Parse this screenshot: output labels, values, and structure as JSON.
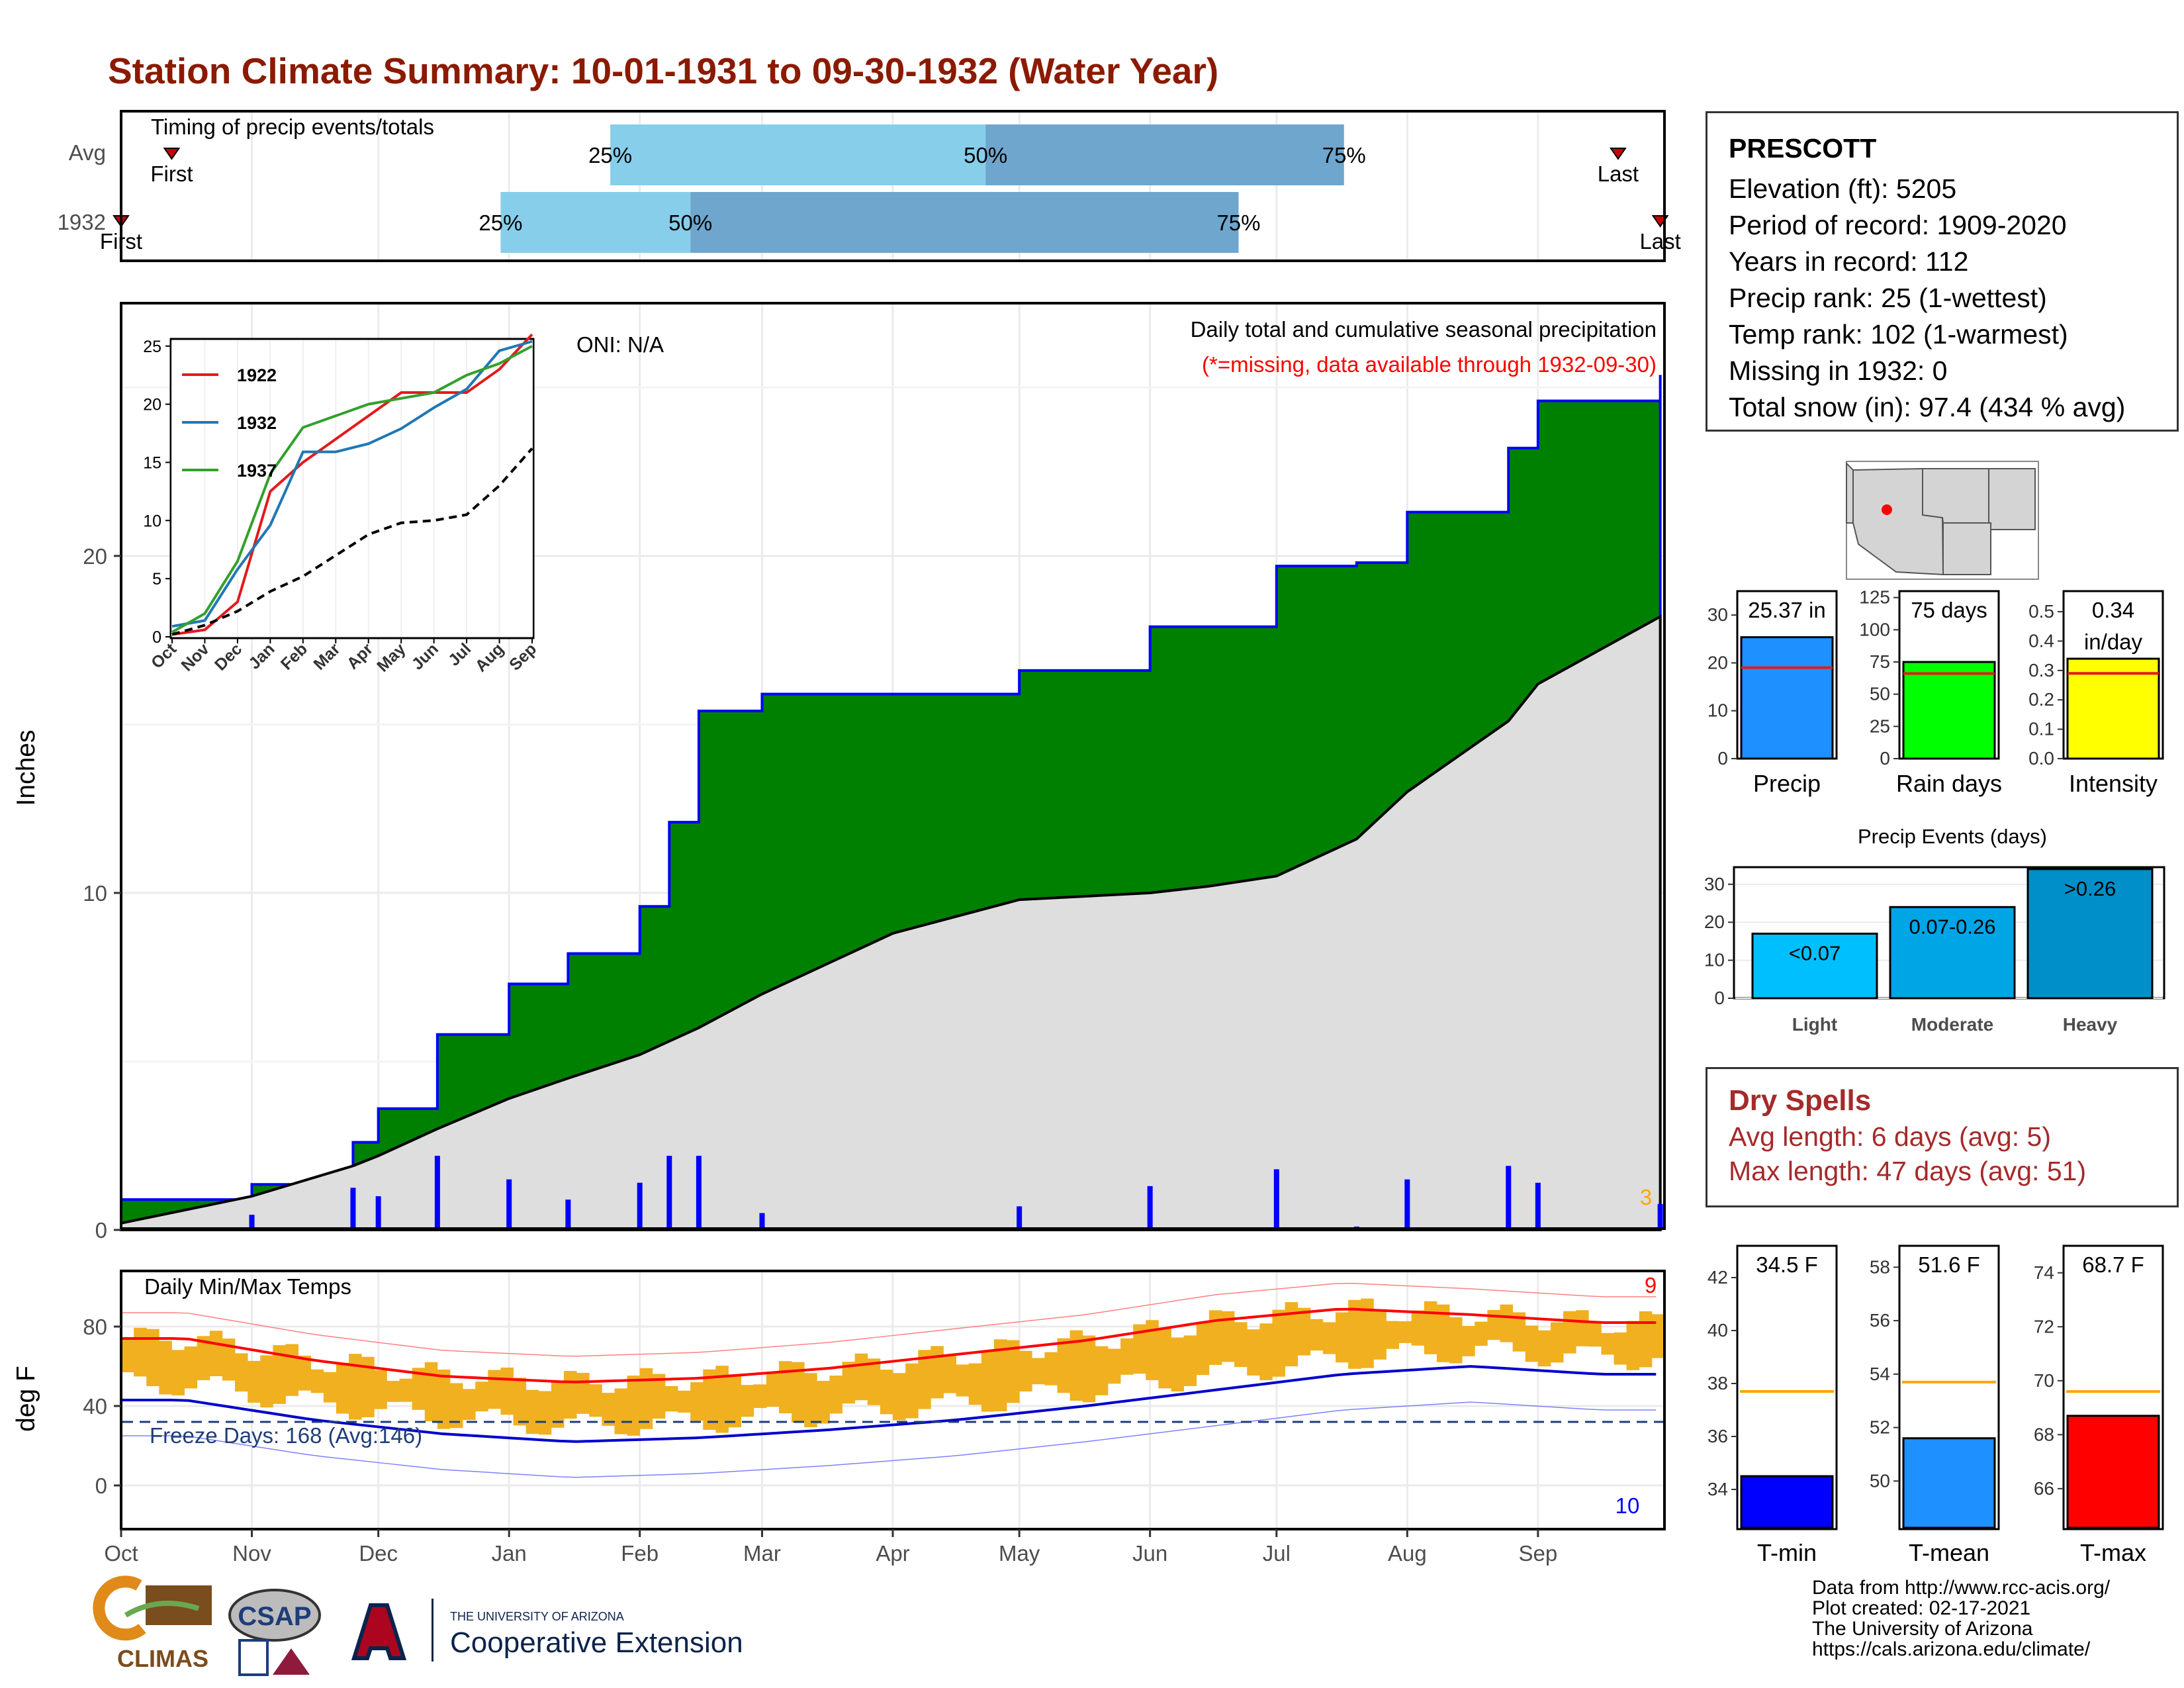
{
  "title": "Station Climate Summary: 10-01-1931 to 09-30-1932 (Water Year)",
  "colors": {
    "title": "#8b1a00",
    "cumulative_fill": "#008000",
    "avg_fill": "#dedede",
    "bar_light": "#87ceeb",
    "bar_dark": "#6ea6cd",
    "temp_bar": "#f0b020",
    "tmax_line": "#ff0000",
    "tmin_line": "#0000cd",
    "dry_spells": "#a52a2a"
  },
  "timing": {
    "label": "Timing of precip events/totals",
    "rows": [
      {
        "label": "Avg",
        "first_label": "First",
        "last_label": "Last",
        "first_day": 12,
        "last_day": 355,
        "p25_day": 116,
        "p50_day": 205,
        "p75_day": 290,
        "p25_label": "25%",
        "p50_label": "50%",
        "p75_label": "75%"
      },
      {
        "label": "1932",
        "first_label": "First",
        "last_label": "Last",
        "first_day": 0,
        "last_day": 365,
        "p25_day": 90,
        "p50_day": 135,
        "p75_day": 265,
        "p25_label": "25%",
        "p50_label": "50%",
        "p75_label": "75%"
      }
    ]
  },
  "precip_panel": {
    "ylabel": "Inches",
    "y_ticks": [
      "0",
      "10",
      "20"
    ],
    "oni_label": "ONI: N/A",
    "legend_title": "Daily total and cumulative seasonal precipitation",
    "missing_note": "(*=missing, data available through 1932-09-30)",
    "corner_count": "3"
  },
  "inset": {
    "y_ticks": [
      "0",
      "5",
      "10",
      "15",
      "20",
      "25"
    ],
    "x_ticks": [
      "Oct",
      "Nov",
      "Dec",
      "Jan",
      "Feb",
      "Mar",
      "Apr",
      "May",
      "Jun",
      "Jul",
      "Aug",
      "Sep"
    ],
    "series": [
      {
        "name": "1922",
        "color": "#e31a1c"
      },
      {
        "name": "1932",
        "color": "#1f78b4"
      },
      {
        "name": "1937",
        "color": "#33a02c"
      }
    ]
  },
  "temp_panel": {
    "ylabel": "deg F",
    "title": "Daily Min/Max Temps",
    "y_ticks": [
      "0",
      "40",
      "80"
    ],
    "freeze_label": "Freeze Days: 168 (Avg:146)",
    "count_top": "9",
    "count_bottom": "10"
  },
  "x_months": [
    "Oct",
    "Nov",
    "Dec",
    "Jan",
    "Feb",
    "Mar",
    "Apr",
    "May",
    "Jun",
    "Jul",
    "Aug",
    "Sep"
  ],
  "station": {
    "name": "PRESCOTT",
    "lines": [
      "Elevation (ft): 5205",
      "Period of record: 1909-2020",
      "Years in record: 112",
      "Precip rank: 25 (1-wettest)",
      "Temp rank: 102 (1-warmest)",
      "Missing in 1932: 0",
      "Total snow (in): 97.4 (434 % avg)"
    ]
  },
  "mini_bars": [
    {
      "name": "Precip",
      "value": 25.37,
      "avg": 19,
      "ymax": 35,
      "ticks": [
        "0",
        "10",
        "20",
        "30"
      ],
      "tick_vals": [
        0,
        10,
        20,
        30
      ],
      "label_line1": "25.37 in",
      "label_line2": "",
      "color": "#1e90ff"
    },
    {
      "name": "Rain days",
      "value": 75,
      "avg": 66,
      "ymax": 130,
      "ticks": [
        "0",
        "25",
        "50",
        "75",
        "100",
        "125"
      ],
      "tick_vals": [
        0,
        25,
        50,
        75,
        100,
        125
      ],
      "label_line1": "75 days",
      "label_line2": "",
      "color": "#00ff00"
    },
    {
      "name": "Intensity",
      "value": 0.34,
      "avg": 0.29,
      "ymax": 0.57,
      "ticks": [
        "0.0",
        "0.1",
        "0.2",
        "0.3",
        "0.4",
        "0.5"
      ],
      "tick_vals": [
        0,
        0.1,
        0.2,
        0.3,
        0.4,
        0.5
      ],
      "label_line1": "0.34",
      "label_line2": "in/day",
      "color": "#ffff00"
    }
  ],
  "precip_events": {
    "title": "Precip Events (days)",
    "categories": [
      "Light",
      "Moderate",
      "Heavy"
    ],
    "bar_labels": [
      "<0.07",
      "0.07-0.26",
      ">0.26"
    ],
    "values": [
      17,
      24,
      34
    ],
    "colors": [
      "#00bfff",
      "#00a5e6",
      "#008fc8"
    ],
    "ticks": [
      "0",
      "10",
      "20",
      "30"
    ],
    "tick_vals": [
      0,
      10,
      20,
      30
    ]
  },
  "dry_spells": {
    "title": "Dry Spells",
    "avg_line": "Avg length: 6 days (avg: 5)",
    "max_line": "Max length: 47 days (avg: 51)"
  },
  "temp_bars": [
    {
      "name": "T-min",
      "value": 34.5,
      "avg": 37.7,
      "ymin": 32.5,
      "ymax": 43.2,
      "ticks": [
        "34",
        "36",
        "38",
        "40",
        "42"
      ],
      "tick_vals": [
        34,
        36,
        38,
        40,
        42
      ],
      "label": "34.5 F",
      "color": "#0000ff"
    },
    {
      "name": "T-mean",
      "value": 51.6,
      "avg": 53.7,
      "ymin": 48.2,
      "ymax": 58.8,
      "ticks": [
        "50",
        "52",
        "54",
        "56",
        "58"
      ],
      "tick_vals": [
        50,
        52,
        54,
        56,
        58
      ],
      "label": "51.6 F",
      "color": "#1e90ff"
    },
    {
      "name": "T-max",
      "value": 68.7,
      "avg": 69.6,
      "ymin": 64.5,
      "ymax": 75.0,
      "ticks": [
        "66",
        "68",
        "70",
        "72",
        "74"
      ],
      "tick_vals": [
        66,
        68,
        70,
        72,
        74
      ],
      "label": "68.7 F",
      "color": "#ff0000"
    }
  ],
  "logos": {
    "climas": "CLIMAS",
    "csap": "CSAP",
    "ua_small": "THE UNIVERSITY OF ARIZONA",
    "ua_ext": "Cooperative Extension"
  },
  "credits": [
    "Data from http://www.rcc-acis.org/",
    "Plot created: 02-17-2021",
    "The University of Arizona",
    "https://cals.arizona.edu/climate/"
  ],
  "chart_data": [
    {
      "type": "area",
      "title": "Daily total and cumulative seasonal precipitation",
      "ylabel": "Inches",
      "ylim": [
        0,
        27.5
      ],
      "x": [
        "Oct 1",
        "Nov 1",
        "Nov 25",
        "Dec 1",
        "Dec 15",
        "Jan 1",
        "Jan 15",
        "Feb 1",
        "Feb 8",
        "Feb 15",
        "Mar 1",
        "Apr 1",
        "May 1",
        "Jun 1",
        "Jun 15",
        "Jul 1",
        "Jul 20",
        "Aug 1",
        "Aug 25",
        "Sep 1",
        "Sep 30"
      ],
      "series": [
        {
          "name": "1932",
          "values": [
            0.9,
            1.35,
            2.6,
            3.6,
            5.8,
            7.3,
            8.2,
            9.6,
            12.1,
            15.4,
            15.9,
            15.9,
            16.6,
            17.9,
            17.9,
            19.7,
            19.8,
            21.3,
            23.2,
            24.6,
            25.37
          ]
        },
        {
          "name": "Avg",
          "values": [
            0.2,
            1.0,
            1.9,
            2.2,
            3.0,
            3.9,
            4.5,
            5.2,
            5.6,
            6.0,
            7.0,
            8.8,
            9.8,
            10.0,
            10.2,
            10.5,
            11.6,
            13.0,
            15.1,
            16.2,
            18.2
          ]
        }
      ]
    },
    {
      "type": "line",
      "title": "",
      "ylim": [
        0,
        25.5
      ],
      "x": [
        "Oct",
        "Nov",
        "Dec",
        "Jan",
        "Feb",
        "Mar",
        "Apr",
        "May",
        "Jun",
        "Jul",
        "Aug",
        "Sep"
      ],
      "series": [
        {
          "name": "1922",
          "values": [
            0.2,
            0.6,
            3.0,
            12.5,
            15.0,
            17.0,
            19.0,
            21.0,
            21.0,
            21.0,
            23.0,
            26.0
          ]
        },
        {
          "name": "1932",
          "values": [
            0.9,
            1.4,
            5.8,
            9.6,
            15.9,
            15.9,
            16.6,
            17.9,
            19.7,
            21.3,
            24.6,
            25.4
          ]
        },
        {
          "name": "1937",
          "values": [
            0.4,
            2.0,
            6.5,
            14.0,
            18.0,
            19.0,
            20.0,
            20.5,
            21.0,
            22.5,
            23.5,
            25.0
          ]
        },
        {
          "name": "Avg",
          "values": [
            0.2,
            1.0,
            2.2,
            3.9,
            5.2,
            7.0,
            8.8,
            9.8,
            10.0,
            10.5,
            13.0,
            16.2
          ]
        }
      ]
    },
    {
      "type": "line",
      "title": "Daily Min/Max Temps",
      "ylabel": "deg F",
      "ylim": [
        -22,
        108
      ],
      "x": [
        "Oct",
        "Nov",
        "Dec",
        "Jan",
        "Feb",
        "Mar",
        "Apr",
        "May",
        "Jun",
        "Jul",
        "Aug",
        "Sep"
      ],
      "series": [
        {
          "name": "Avg max",
          "values": [
            74,
            63,
            55,
            52,
            54,
            59,
            66,
            73,
            83,
            89,
            86,
            82
          ]
        },
        {
          "name": "Avg min",
          "values": [
            43,
            33,
            26,
            22,
            24,
            28,
            33,
            40,
            48,
            56,
            60,
            56
          ]
        }
      ],
      "freeze_line": 32
    }
  ]
}
